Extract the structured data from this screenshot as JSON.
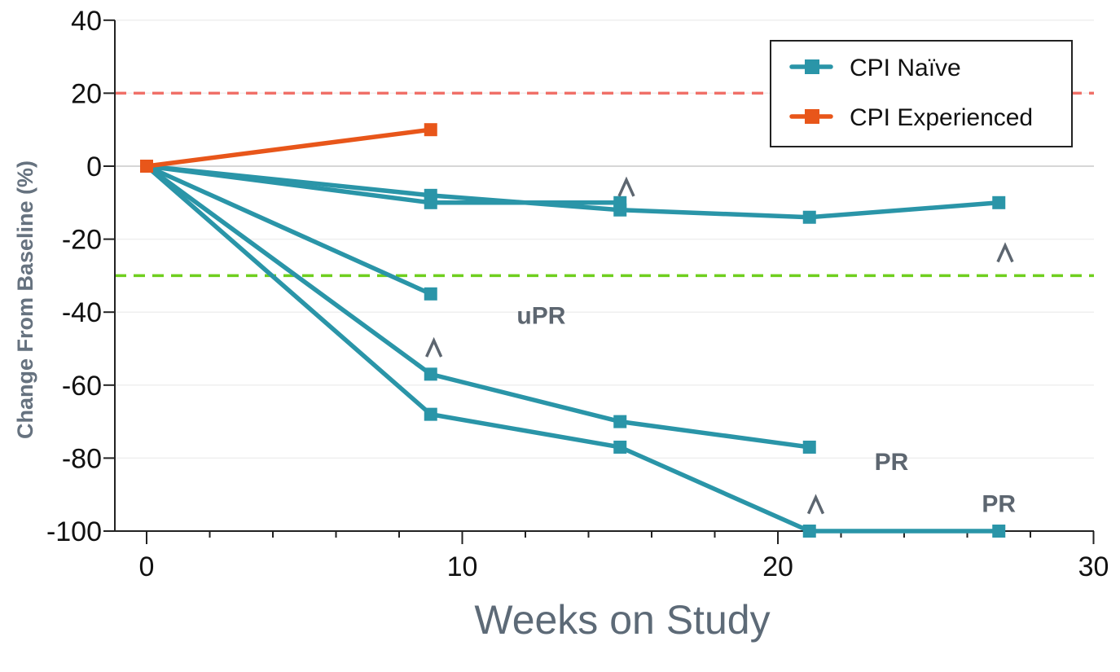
{
  "chart_data": {
    "type": "line",
    "title": "",
    "xlabel": "Weeks on Study",
    "ylabel": "Change From Baseline (%)",
    "xlim": [
      -1,
      30
    ],
    "ylim": [
      -100,
      40
    ],
    "xticks": [
      0,
      10,
      20,
      30
    ],
    "xtick_labels": [
      "0",
      "10",
      "20",
      "30"
    ],
    "x_minor_ticks": [
      2,
      4,
      6,
      8,
      12,
      14,
      16,
      18,
      22,
      24,
      26,
      28
    ],
    "yticks": [
      40,
      20,
      0,
      -20,
      -40,
      -60,
      -80,
      -100
    ],
    "ytick_labels": [
      "40",
      "20",
      "0",
      "-20",
      "-40",
      "-60",
      "-80",
      "-100"
    ],
    "grid": true,
    "legend_position": "top-right",
    "legend": [
      {
        "name": "CPI Naïve",
        "color": "#2a95a8"
      },
      {
        "name": "CPI Experienced",
        "color": "#e8561a"
      }
    ],
    "reference_lines": [
      {
        "name": "progression-threshold",
        "y": 20,
        "color": "#f07068",
        "style": "dashed"
      },
      {
        "name": "response-threshold",
        "y": -30,
        "color": "#6fcf1f",
        "style": "dashed"
      },
      {
        "name": "baseline",
        "y": 0,
        "color": "#c8c8c8",
        "style": "solid"
      }
    ],
    "series": [
      {
        "name": "CPI Naïve",
        "group": "naive",
        "color": "#2a95a8",
        "x": [
          0,
          9,
          15,
          21,
          27
        ],
        "y": [
          0,
          -8,
          -12,
          -14,
          -10
        ]
      },
      {
        "name": "CPI Naïve",
        "group": "naive",
        "color": "#2a95a8",
        "x": [
          0,
          9,
          15
        ],
        "y": [
          0,
          -10,
          -10
        ]
      },
      {
        "name": "CPI Naïve",
        "group": "naive",
        "color": "#2a95a8",
        "x": [
          0,
          9
        ],
        "y": [
          0,
          -35
        ]
      },
      {
        "name": "CPI Naïve",
        "group": "naive",
        "color": "#2a95a8",
        "x": [
          0,
          9,
          15,
          21
        ],
        "y": [
          0,
          -57,
          -70,
          -77
        ]
      },
      {
        "name": "CPI Naïve",
        "group": "naive",
        "color": "#2a95a8",
        "x": [
          0,
          9,
          15,
          21,
          27
        ],
        "y": [
          0,
          -68,
          -77,
          -100,
          -100
        ]
      },
      {
        "name": "CPI Experienced",
        "group": "experienced",
        "color": "#e8561a",
        "x": [
          0,
          9
        ],
        "y": [
          0,
          10
        ]
      }
    ],
    "annotations": [
      {
        "text": "uPR",
        "x": 12.5,
        "y": -41,
        "kind": "label"
      },
      {
        "text": "PR",
        "x": 23.6,
        "y": -81,
        "kind": "label"
      },
      {
        "text": "PR",
        "x": 27,
        "y": -92.5,
        "kind": "label"
      },
      {
        "text": "^",
        "x": 15.2,
        "y": -6,
        "kind": "caret"
      },
      {
        "text": "^",
        "x": 27.2,
        "y": -24,
        "kind": "caret"
      },
      {
        "text": "^",
        "x": 9.1,
        "y": -50,
        "kind": "caret"
      },
      {
        "text": "^",
        "x": 21.2,
        "y": -93,
        "kind": "caret"
      }
    ]
  }
}
